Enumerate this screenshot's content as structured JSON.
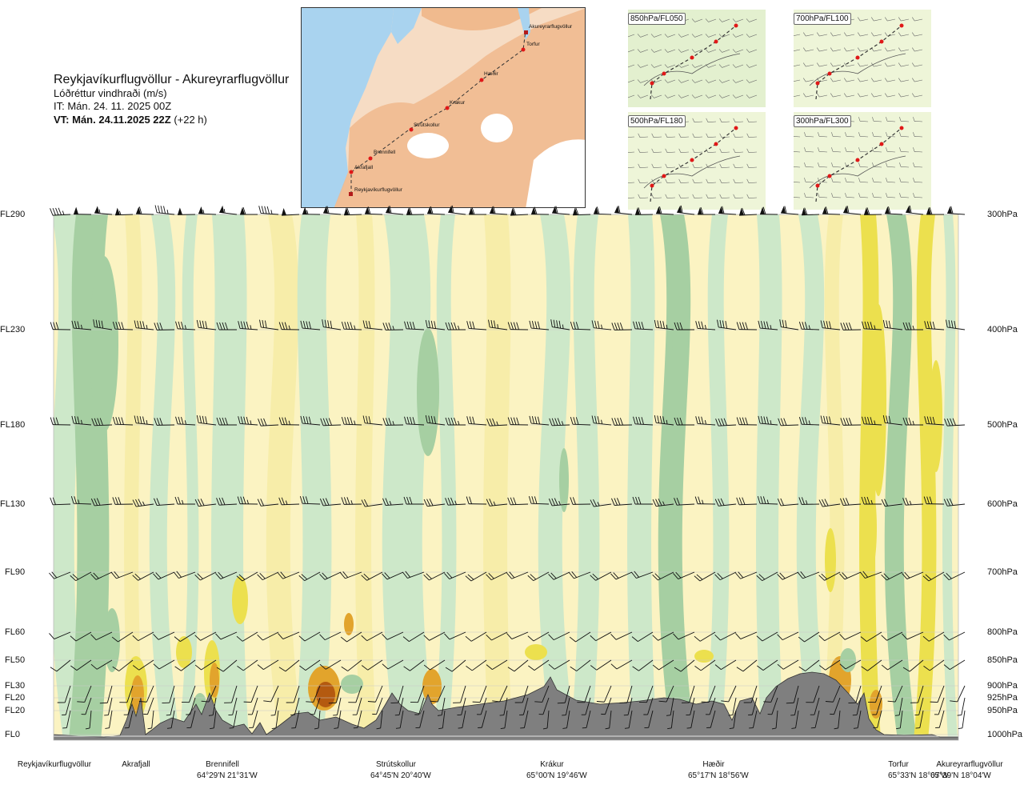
{
  "title": {
    "route": "Reykjavíkurflugvöllur - Akureyrarflugvöllur",
    "variable": "Lóðréttur vindhraði (m/s)",
    "issue": "IT: Mán. 24. 11. 2025 00Z",
    "valid_bold": "VT: Mán. 24.11.2025 22Z",
    "valid_offset": " (+22 h)"
  },
  "map": {
    "stations": [
      "Akureyrarflugvöllur",
      "Torfur",
      "Hæðir",
      "Krákur",
      "Strútskollur",
      "Brennifell",
      "Akrafjall",
      "Reykjavíkurflugvöllur"
    ],
    "colors": {
      "land": "#f2b88c",
      "sea": "#a9d3ef",
      "ice": "#ffffff",
      "route": "#333333",
      "point": "#e01818"
    }
  },
  "mini_maps": [
    {
      "label": "850hPa/FL050"
    },
    {
      "label": "700hPa/FL100"
    },
    {
      "label": "500hPa/FL180"
    },
    {
      "label": "300hPa/FL300"
    }
  ],
  "chart_data": {
    "type": "heatmap",
    "title": "",
    "xlabel": "",
    "ylabel": "",
    "variable": "vertical wind speed (m/s)",
    "y_levels": [
      {
        "fl": "FL290",
        "hpa": "300hPa"
      },
      {
        "fl": "FL230",
        "hpa": "400hPa"
      },
      {
        "fl": "FL180",
        "hpa": "500hPa"
      },
      {
        "fl": "FL130",
        "hpa": "600hPa"
      },
      {
        "fl": "FL90",
        "hpa": "700hPa"
      },
      {
        "fl": "FL60",
        "hpa": "800hPa"
      },
      {
        "fl": "FL50",
        "hpa": "850hPa"
      },
      {
        "fl": "FL30",
        "hpa": "900hPa"
      },
      {
        "fl": "FL20",
        "hpa": "925hPa"
      },
      {
        "fl": "FL20",
        "hpa": "950hPa"
      },
      {
        "fl": "FL0",
        "hpa": "1000hPa"
      }
    ],
    "stations": [
      {
        "name": "Reykjavíkurflugvöllur",
        "coord": ""
      },
      {
        "name": "Akrafjall",
        "coord": ""
      },
      {
        "name": "Brennifell",
        "coord": "64°29'N 21°31'W"
      },
      {
        "name": "Strútskollur",
        "coord": "64°45'N 20°40'W"
      },
      {
        "name": "Krákur",
        "coord": "65°00'N 19°46'W"
      },
      {
        "name": "Hæðir",
        "coord": "65°17'N 18°56'W"
      },
      {
        "name": "Torfur",
        "coord": "65°33'N 18°07'W"
      },
      {
        "name": "Akureyrarflugvöllur",
        "coord": "65°39'N 18°04'W"
      }
    ],
    "colors": {
      "strong_down": "#a6cfa2",
      "down": "#cde8c9",
      "neutral": "#fdfbe6",
      "up": "#f7eda9",
      "strong_up": "#ece04e",
      "very_strong_up": "#e2a42c",
      "extreme_up": "#b45a10",
      "terrain": "#7f7f7f"
    }
  }
}
